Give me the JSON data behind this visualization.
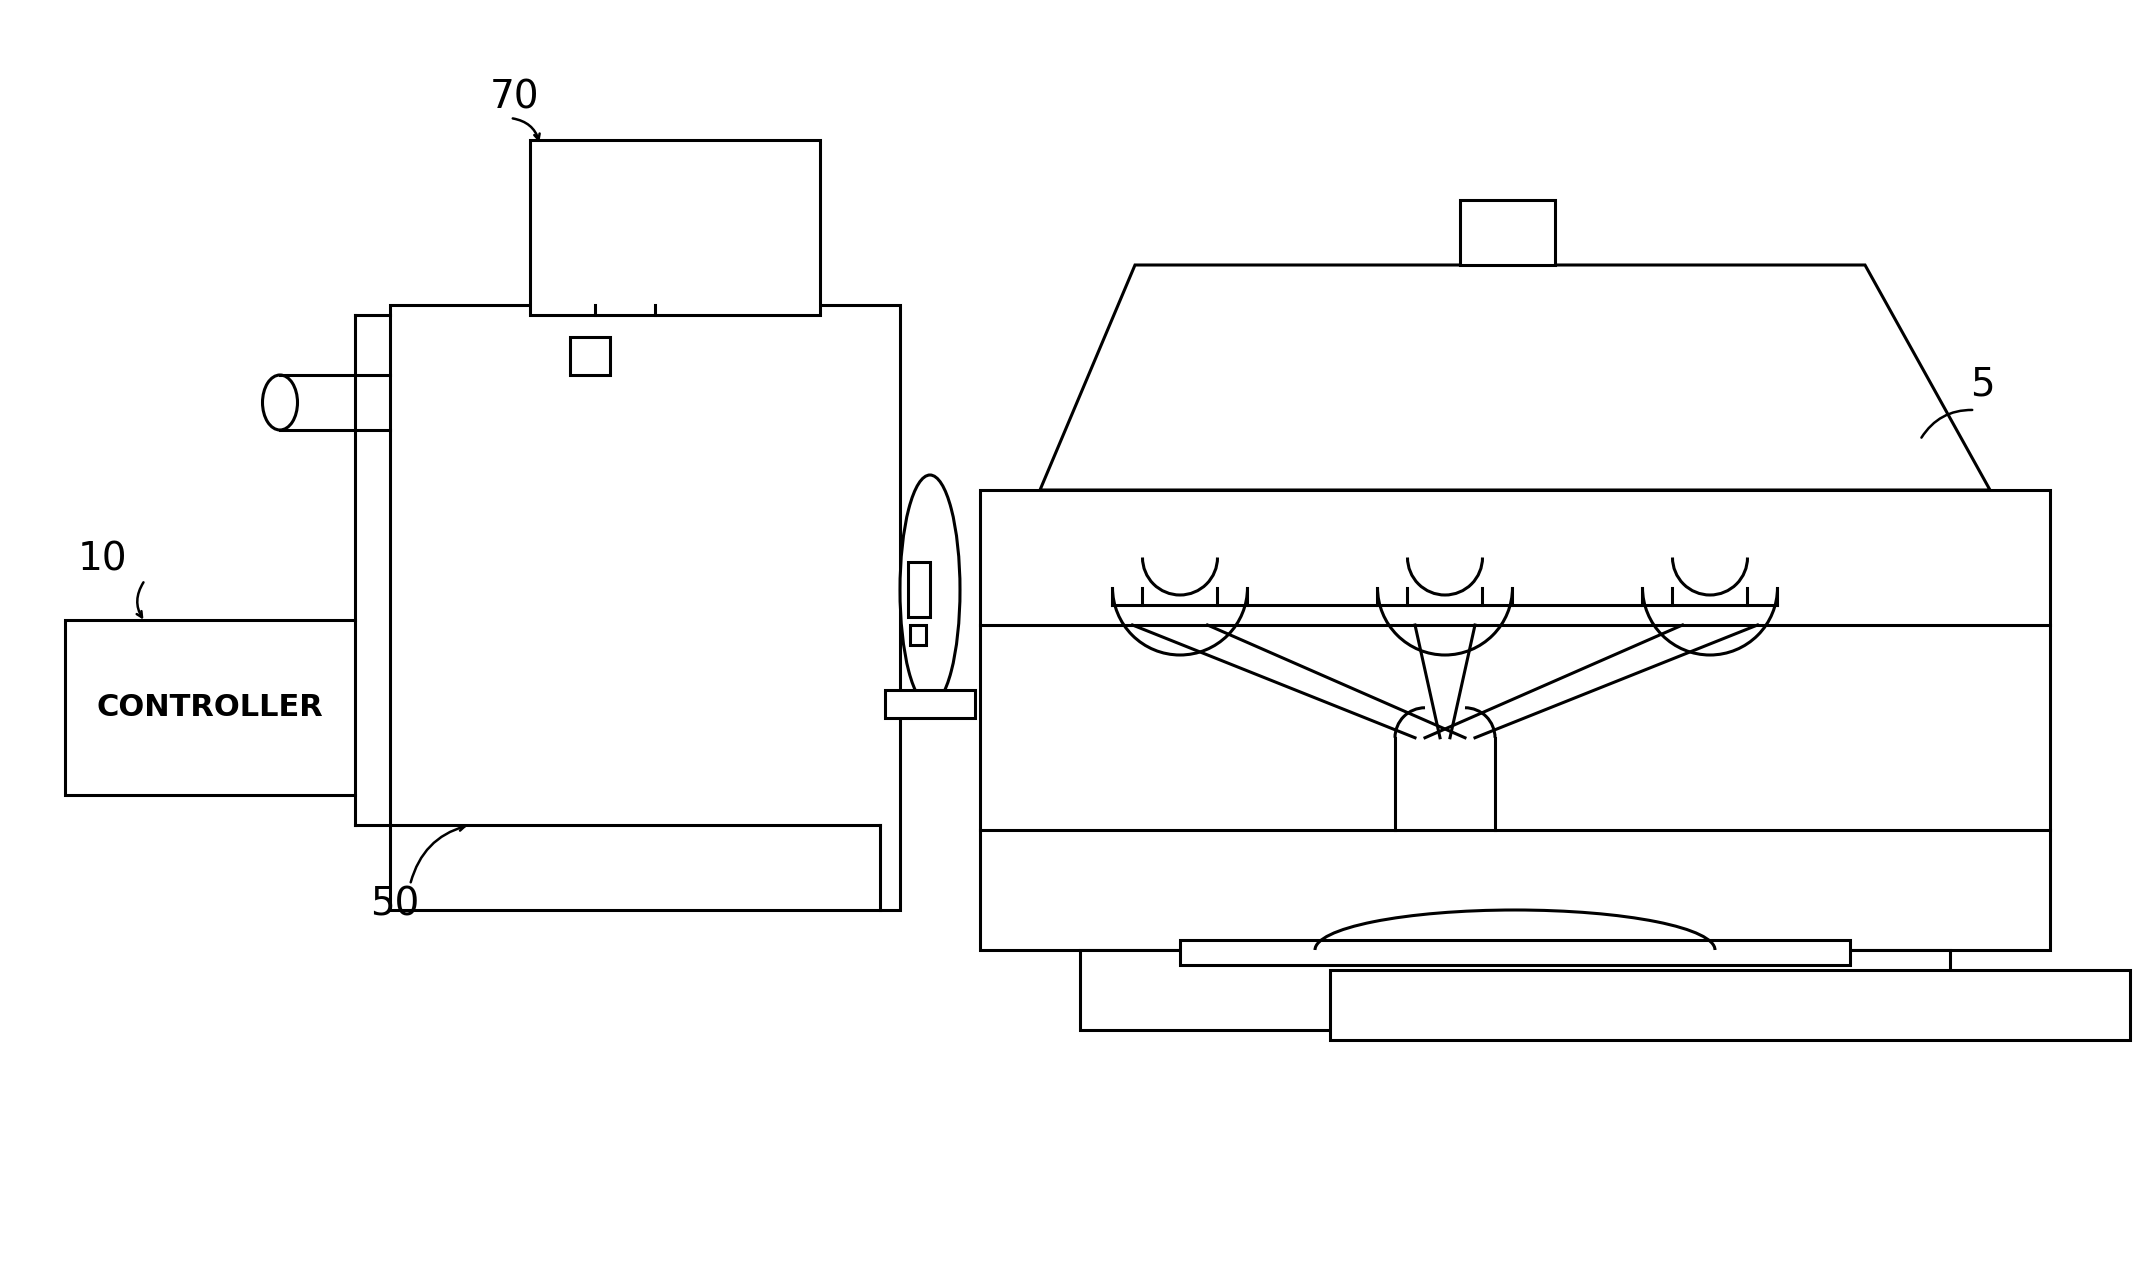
{
  "bg_color": "#ffffff",
  "line_color": "#000000",
  "lw": 2.2,
  "fig_w": 21.41,
  "fig_h": 12.82,
  "dpi": 100
}
